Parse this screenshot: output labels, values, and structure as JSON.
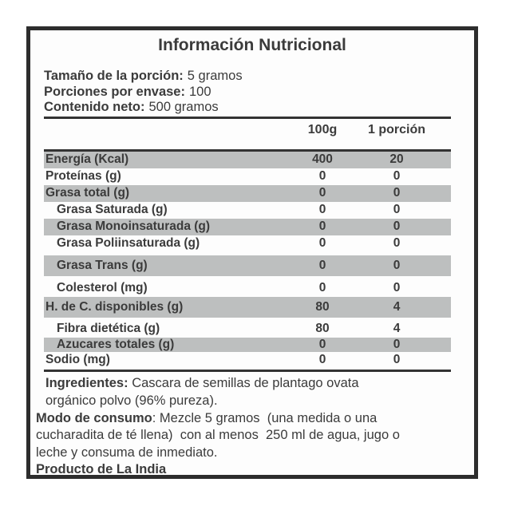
{
  "label": {
    "title": "Información Nutricional",
    "serving": [
      {
        "label": "Tamaño de la porción:",
        "value": "5 gramos"
      },
      {
        "label": "Porciones por envase:",
        "value": "100"
      },
      {
        "label": "Contenido neto:",
        "value": "500 gramos"
      }
    ],
    "columns": {
      "per100": "100g",
      "per_portion": "1 porción"
    },
    "rows": [
      {
        "label": "Energía (Kcal)",
        "per100": "400",
        "per_portion": "20"
      },
      {
        "label": "Proteínas (g)",
        "per100": "0",
        "per_portion": "0"
      },
      {
        "label": "Grasa total (g)",
        "per100": "0",
        "per_portion": "0"
      },
      {
        "label": "Grasa Saturada (g)",
        "per100": "0",
        "per_portion": "0"
      },
      {
        "label": "Grasa Monoinsaturada (g)",
        "per100": "0",
        "per_portion": "0"
      },
      {
        "label": "Grasa Poliinsaturada (g)",
        "per100": "0",
        "per_portion": "0"
      },
      {
        "label": "Grasa Trans (g)",
        "per100": "0",
        "per_portion": "0"
      },
      {
        "label": "Colesterol (mg)",
        "per100": "0",
        "per_portion": "0"
      },
      {
        "label": "H. de C. disponibles (g)",
        "per100": "80",
        "per_portion": "4"
      },
      {
        "label": "Fibra dietética (g)",
        "per100": "80",
        "per_portion": "4"
      },
      {
        "label": "Azucares totales (g)",
        "per100": "0",
        "per_portion": "0"
      },
      {
        "label": "Sodio (mg)",
        "per100": "0",
        "per_portion": "0"
      }
    ],
    "ingredients": {
      "label": "Ingredientes:",
      "text": " Cascara de semillas de plantago ovata orgánico polvo (96% pureza)."
    },
    "usage": {
      "label": "Modo de consumo",
      "text": ": Mezcle 5 gramos  (una medida o una cucharadita de té llena)  con al menos  250 ml de agua, jugo o leche y consuma de inmediato."
    },
    "origin": "Producto de La India"
  },
  "colors": {
    "band": "#bdbfbf",
    "ink": "#3b3b3b",
    "rule": "#333333",
    "border": "#2d2d2d"
  }
}
